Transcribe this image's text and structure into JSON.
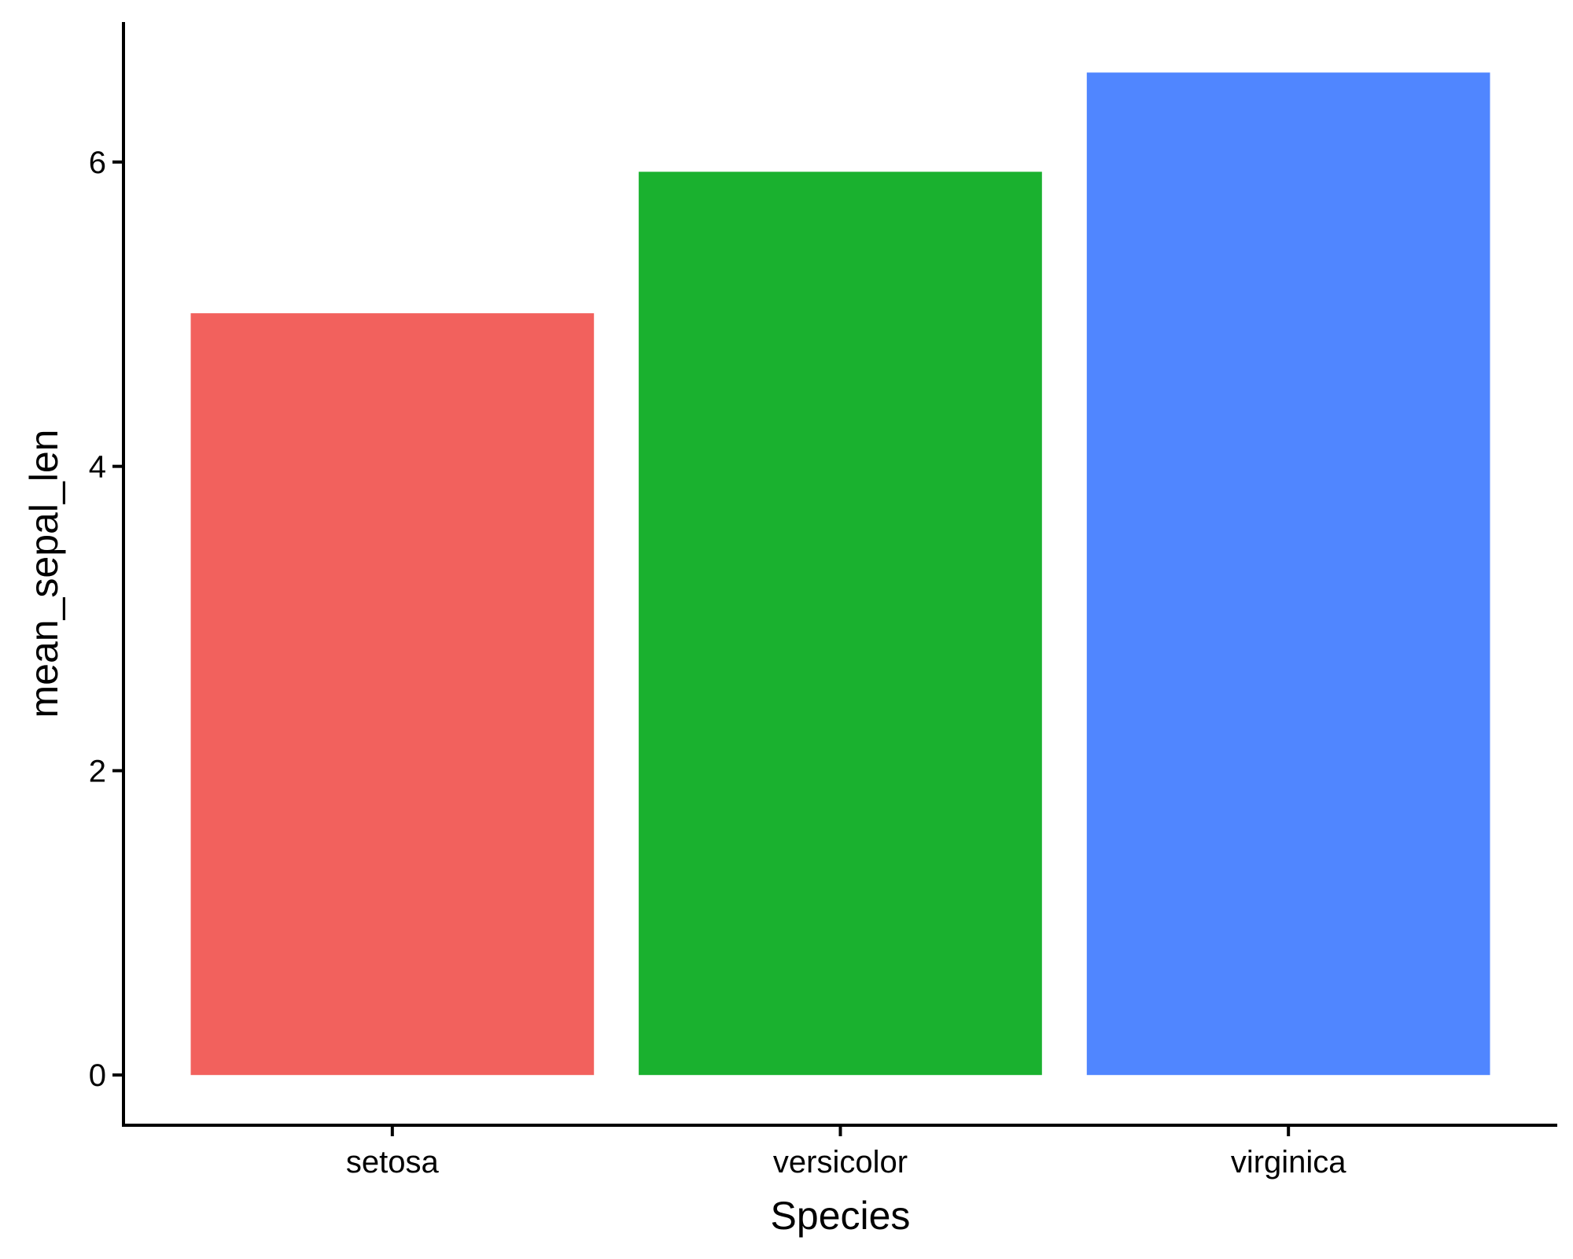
{
  "chart_data": {
    "type": "bar",
    "categories": [
      "setosa",
      "versicolor",
      "virginica"
    ],
    "values": [
      5.006,
      5.936,
      6.588
    ],
    "colors": [
      "#F2615D",
      "#1AB12F",
      "#5086FF"
    ],
    "title": "",
    "xlabel": "Species",
    "ylabel": "mean_sepal_len",
    "ylim": [
      -0.33,
      6.92
    ],
    "yticks": [
      0,
      2,
      4,
      6
    ],
    "ytick_labels": [
      "0",
      "2",
      "4",
      "6"
    ],
    "grid": false,
    "legend": "none"
  }
}
